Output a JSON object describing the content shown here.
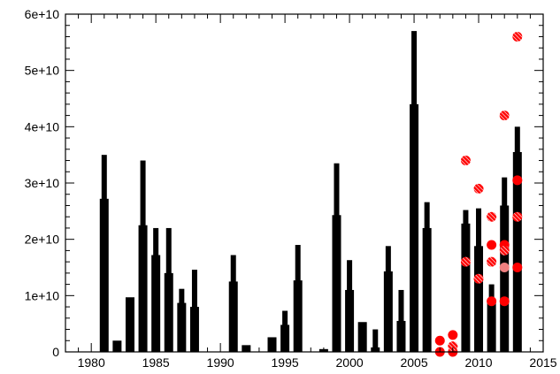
{
  "chart_data": {
    "type": "bar",
    "title": "",
    "xlabel": "",
    "ylabel": "",
    "xlim": [
      1978,
      2015
    ],
    "ylim": [
      0,
      60000000000.0
    ],
    "grid": false,
    "x_ticks": [
      1980,
      1985,
      1990,
      1995,
      2000,
      2005,
      2010,
      2015
    ],
    "x_tick_labels": [
      "1980",
      "1985",
      "1990",
      "1995",
      "2000",
      "2005",
      "2010",
      "2015"
    ],
    "y_ticks": [
      0,
      10000000000.0,
      20000000000.0,
      30000000000.0,
      40000000000.0,
      50000000000.0,
      60000000000.0
    ],
    "y_tick_labels": [
      "0",
      "1e+10",
      "2e+10",
      "3e+10",
      "4e+10",
      "5e+10",
      "6e+10"
    ],
    "bars": [
      {
        "x": 1981,
        "low": 27200000000.0,
        "high": 35000000000.0
      },
      {
        "x": 1982,
        "low": 2000000000.0,
        "high": 2000000000.0
      },
      {
        "x": 1983,
        "low": 9700000000.0,
        "high": 9700000000.0
      },
      {
        "x": 1984,
        "low": 22500000000.0,
        "high": 34000000000.0
      },
      {
        "x": 1985,
        "low": 17200000000.0,
        "high": 22000000000.0
      },
      {
        "x": 1986,
        "low": 14000000000.0,
        "high": 22000000000.0
      },
      {
        "x": 1987,
        "low": 8700000000.0,
        "high": 11200000000.0
      },
      {
        "x": 1988,
        "low": 8000000000.0,
        "high": 14600000000.0
      },
      {
        "x": 1991,
        "low": 12500000000.0,
        "high": 17200000000.0
      },
      {
        "x": 1992,
        "low": 1200000000.0,
        "high": 1200000000.0
      },
      {
        "x": 1994,
        "low": 2600000000.0,
        "high": 2600000000.0
      },
      {
        "x": 1995,
        "low": 4800000000.0,
        "high": 7300000000.0
      },
      {
        "x": 1996,
        "low": 12700000000.0,
        "high": 19000000000.0
      },
      {
        "x": 1998,
        "low": 500000000.0,
        "high": 500000000.0
      },
      {
        "x": 1999,
        "low": 24300000000.0,
        "high": 33500000000.0
      },
      {
        "x": 2000,
        "low": 11000000000.0,
        "high": 16300000000.0
      },
      {
        "x": 2001,
        "low": 5300000000.0,
        "high": 5300000000.0
      },
      {
        "x": 2002,
        "low": 800000000.0,
        "high": 4000000000.0
      },
      {
        "x": 2003,
        "low": 14300000000.0,
        "high": 18800000000.0
      },
      {
        "x": 2004,
        "low": 5500000000.0,
        "high": 11000000000.0
      },
      {
        "x": 2005,
        "low": 44000000000.0,
        "high": 57000000000.0
      },
      {
        "x": 2006,
        "low": 22000000000.0,
        "high": 26600000000.0
      },
      {
        "x": 2009,
        "low": 22800000000.0,
        "high": 25200000000.0
      },
      {
        "x": 2010,
        "low": 18800000000.0,
        "high": 25500000000.0
      },
      {
        "x": 2011,
        "low": 9000000000.0,
        "high": 12000000000.0
      },
      {
        "x": 2012,
        "low": 26000000000.0,
        "high": 31000000000.0
      },
      {
        "x": 2013,
        "low": 35500000000.0,
        "high": 40000000000.0
      }
    ],
    "markers_solid": [
      {
        "x": 2007,
        "y": 2000000000.0
      },
      {
        "x": 2007,
        "y": 0
      },
      {
        "x": 2008,
        "y": 3000000000.0
      },
      {
        "x": 2008,
        "y": 0
      },
      {
        "x": 2011,
        "y": 19000000000.0
      },
      {
        "x": 2011,
        "y": 9000000000.0
      },
      {
        "x": 2012,
        "y": 19000000000.0
      },
      {
        "x": 2012,
        "y": 9000000000.0
      },
      {
        "x": 2013,
        "y": 30500000000.0
      },
      {
        "x": 2013,
        "y": 15000000000.0
      }
    ],
    "markers_light": [
      {
        "x": 2012,
        "y": 15000000000.0
      }
    ],
    "markers_hatched": [
      {
        "x": 2008,
        "y": 1000000000.0
      },
      {
        "x": 2009,
        "y": 34000000000.0
      },
      {
        "x": 2009,
        "y": 16000000000.0
      },
      {
        "x": 2010,
        "y": 29000000000.0
      },
      {
        "x": 2010,
        "y": 13000000000.0
      },
      {
        "x": 2011,
        "y": 24000000000.0
      },
      {
        "x": 2011,
        "y": 16000000000.0
      },
      {
        "x": 2012,
        "y": 42000000000.0
      },
      {
        "x": 2012,
        "y": 18000000000.0
      },
      {
        "x": 2013,
        "y": 56000000000.0
      },
      {
        "x": 2013,
        "y": 24000000000.0
      }
    ],
    "colors": {
      "bar": "#000000",
      "marker": "#ff0000",
      "marker_light": "#f08080",
      "axis": "#000000"
    }
  }
}
